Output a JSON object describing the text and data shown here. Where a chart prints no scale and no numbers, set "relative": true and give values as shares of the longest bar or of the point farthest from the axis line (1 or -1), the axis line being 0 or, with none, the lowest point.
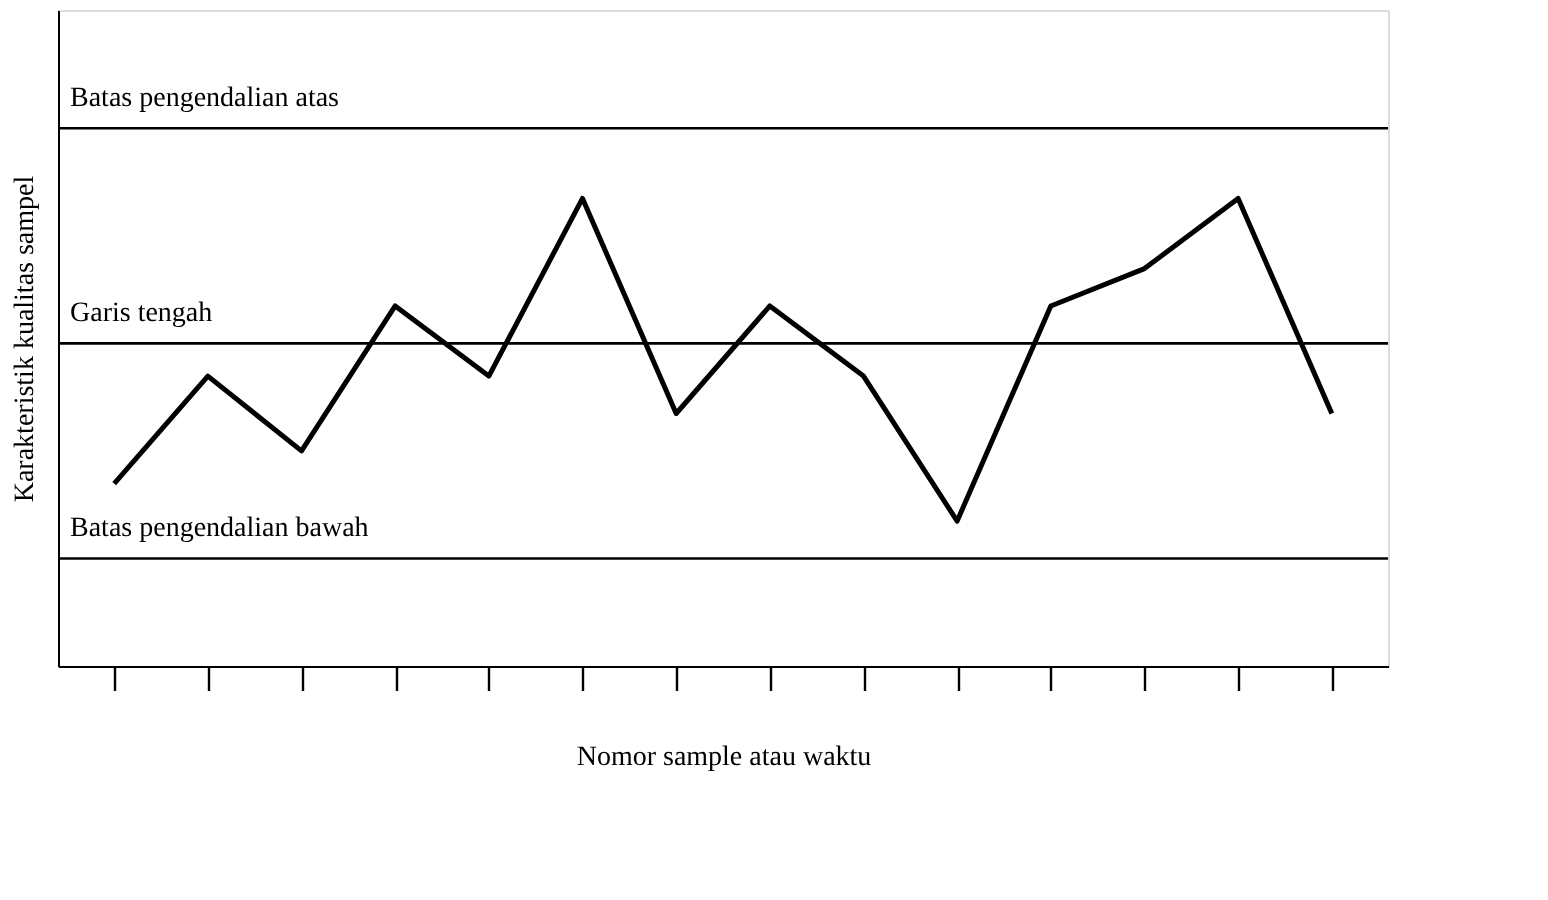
{
  "chart_data": {
    "type": "line",
    "relative": true,
    "xlabel": "Nomor sample atau waktu",
    "ylabel": "Karakteristik kualitas sampel",
    "categories": [
      null,
      null,
      null,
      null,
      null,
      null,
      null,
      null,
      null,
      null,
      null,
      null,
      null,
      null
    ],
    "series": [
      {
        "color": "#000000",
        "values": [
          0.39,
          0.62,
          0.46,
          0.77,
          0.62,
          1,
          0.54,
          0.77,
          0.62,
          0.31,
          0.77,
          0.85,
          1,
          0.54
        ]
      }
    ],
    "ref_lines": [
      {
        "axis": "y",
        "value": 1.15,
        "label": "Batas pengendalian atas",
        "color": "#000000"
      },
      {
        "axis": "y",
        "value": 0.69,
        "label": "Garis tengah",
        "color": "#000000"
      },
      {
        "axis": "y",
        "value": 0.23,
        "label": "Batas pengendalian bawah",
        "color": "#000000"
      }
    ],
    "grid": false,
    "marker": "none",
    "line_style": "solid"
  }
}
